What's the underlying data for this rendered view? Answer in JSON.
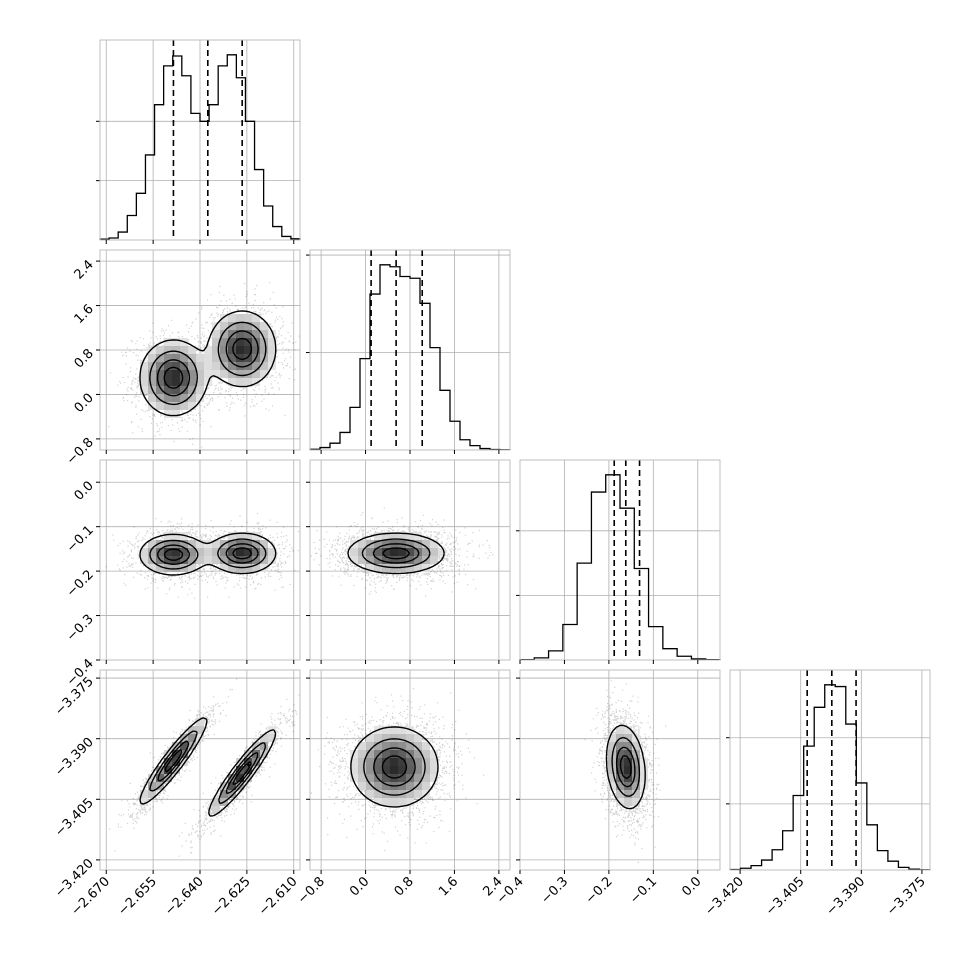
{
  "chart_data": {
    "type": "corner",
    "dimensions": 4,
    "parameters": [
      {
        "range": [
          -2.672,
          -2.608
        ],
        "ticks": [
          -2.67,
          -2.655,
          -2.64,
          -2.625,
          -2.61
        ],
        "tick_labels": [
          "−2.670",
          "−2.655",
          "−2.640",
          "−2.625",
          "−2.610"
        ],
        "quantiles": [
          -2.6485,
          -2.6375,
          -2.6265
        ],
        "histogram": {
          "counts": [
            2,
            5,
            20,
            62,
            118,
            215,
            342,
            440,
            465,
            415,
            320,
            300,
            342,
            440,
            468,
            410,
            300,
            178,
            86,
            34,
            9,
            3
          ],
          "yticks": [
            150,
            300
          ]
        }
      },
      {
        "range": [
          -1.0,
          2.6
        ],
        "ticks": [
          -0.8,
          0.0,
          0.8,
          1.6,
          2.4
        ],
        "tick_labels": [
          "−0.8",
          "0.0",
          "0.8",
          "1.6",
          "2.4"
        ],
        "quantiles": [
          0.1,
          0.55,
          1.02
        ],
        "histogram": {
          "counts": [
            3,
            10,
            28,
            72,
            175,
            375,
            640,
            760,
            752,
            712,
            705,
            602,
            420,
            245,
            118,
            42,
            18,
            6,
            2,
            1
          ],
          "yticks": [
            400,
            800
          ]
        }
      },
      {
        "range": [
          -0.4,
          0.05
        ],
        "ticks": [
          -0.4,
          -0.3,
          -0.2,
          -0.1,
          0.0
        ],
        "tick_labels": [
          "−0.4",
          "−0.3",
          "−0.2",
          "−0.1",
          "0.0"
        ],
        "quantiles": [
          -0.188,
          -0.162,
          -0.131
        ],
        "histogram": {
          "counts": [
            3,
            20,
            85,
            330,
            900,
            1560,
            1720,
            1410,
            850,
            310,
            105,
            35,
            10,
            3
          ],
          "yticks": [
            600,
            1200
          ]
        }
      },
      {
        "range": [
          -3.4225,
          -3.373
        ],
        "ticks": [
          -3.42,
          -3.405,
          -3.39,
          -3.375
        ],
        "tick_labels": [
          "−3.420",
          "−3.405",
          "−3.390",
          "−3.375"
        ],
        "quantiles": [
          -3.4034,
          -3.3973,
          -3.3913
        ],
        "histogram": {
          "counts": [
            2,
            8,
            20,
            45,
            92,
            178,
            338,
            562,
            738,
            840,
            832,
            662,
            395,
            205,
            88,
            40,
            12,
            4,
            1
          ],
          "yticks": [
            300,
            600
          ]
        }
      }
    ],
    "pairs": [
      {
        "row": 1,
        "col": 0,
        "components": [
          {
            "mean": [
              -2.6485,
              0.3
            ],
            "sd": [
              0.0052,
              0.33
            ],
            "rho": 0.0
          },
          {
            "mean": [
              -2.6265,
              0.82
            ],
            "sd": [
              0.0052,
              0.33
            ],
            "rho": 0.0
          }
        ]
      },
      {
        "row": 2,
        "col": 0,
        "components": [
          {
            "mean": [
              -2.6485,
              -0.163
            ],
            "sd": [
              0.0052,
              0.022
            ],
            "rho": 0.0
          },
          {
            "mean": [
              -2.6265,
              -0.16
            ],
            "sd": [
              0.0052,
              0.022
            ],
            "rho": 0.0
          }
        ]
      },
      {
        "row": 2,
        "col": 1,
        "components": [
          {
            "mean": [
              0.55,
              -0.16
            ],
            "sd": [
              0.42,
              0.022
            ],
            "rho": 0.0
          }
        ]
      },
      {
        "row": 3,
        "col": 0,
        "components": [
          {
            "mean": [
              -2.6485,
              -3.3955
            ],
            "sd": [
              0.0052,
              0.0052
            ],
            "rho": 0.93
          },
          {
            "mean": [
              -2.6265,
              -3.3985
            ],
            "sd": [
              0.0052,
              0.0052
            ],
            "rho": 0.93
          }
        ]
      },
      {
        "row": 3,
        "col": 1,
        "components": [
          {
            "mean": [
              0.52,
              -3.397
            ],
            "sd": [
              0.38,
              0.0048
            ],
            "rho": 0.0
          }
        ]
      },
      {
        "row": 3,
        "col": 2,
        "components": [
          {
            "mean": [
              -0.162,
              -3.397
            ],
            "sd": [
              0.021,
              0.005
            ],
            "rho": -0.2
          }
        ]
      }
    ],
    "grid": true
  }
}
